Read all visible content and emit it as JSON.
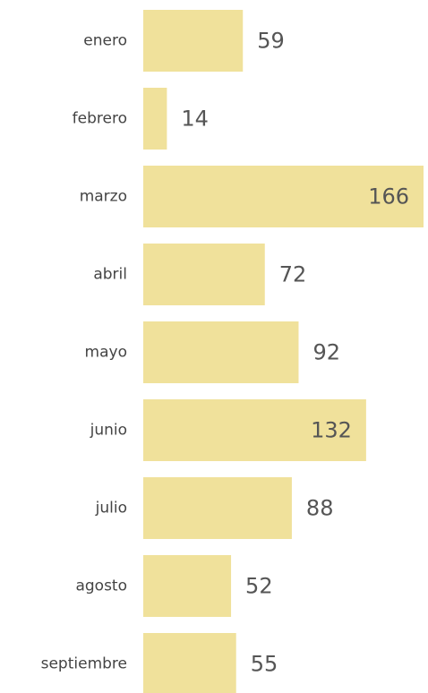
{
  "chart_data": {
    "type": "bar",
    "orientation": "horizontal",
    "categories": [
      "enero",
      "febrero",
      "marzo",
      "abril",
      "mayo",
      "junio",
      "julio",
      "agosto",
      "septiembre"
    ],
    "values": [
      59,
      14,
      166,
      72,
      92,
      132,
      88,
      52,
      55
    ],
    "color": "#f0e19b"
  }
}
